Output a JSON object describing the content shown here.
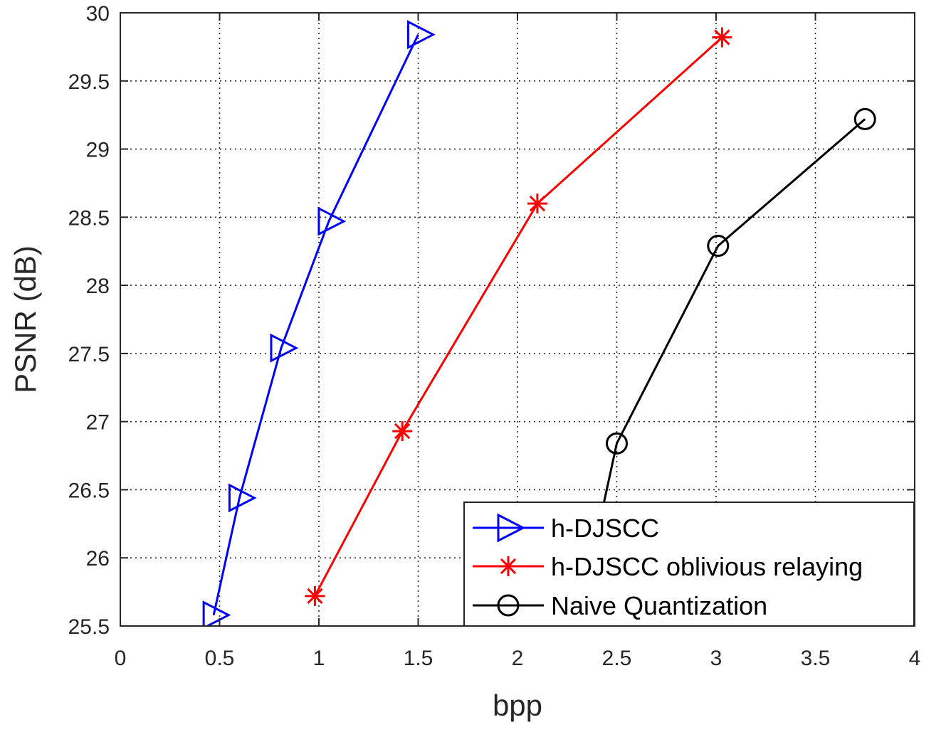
{
  "chart_data": {
    "type": "line",
    "xlabel": "bpp",
    "ylabel": "PSNR (dB)",
    "xlim": [
      0,
      4
    ],
    "ylim": [
      25.5,
      30
    ],
    "x_ticks": [
      "0",
      "0.5",
      "1",
      "1.5",
      "2",
      "2.5",
      "3",
      "3.5",
      "4"
    ],
    "y_ticks": [
      "25.5",
      "26",
      "26.5",
      "27",
      "27.5",
      "28",
      "28.5",
      "29",
      "29.5",
      "30"
    ],
    "grid": true,
    "legend_position": "bottom-right",
    "series": [
      {
        "name": "h-DJSCC",
        "color": "#0000ff",
        "marker": "triangle-right",
        "x": [
          0.47,
          0.6,
          0.81,
          1.05,
          1.5
        ],
        "y": [
          25.58,
          26.44,
          27.54,
          28.47,
          29.84
        ]
      },
      {
        "name": "h-DJSCC oblivious relaying",
        "color": "#ff0000",
        "marker": "asterisk",
        "x": [
          0.98,
          1.42,
          2.1,
          3.03
        ],
        "y": [
          25.72,
          26.93,
          28.6,
          29.82
        ]
      },
      {
        "name": "Naive Quantization",
        "color": "#000000",
        "marker": "circle",
        "x": [
          2.3,
          2.5,
          3.01,
          3.75
        ],
        "y": [
          25.5,
          26.84,
          28.29,
          29.22
        ]
      }
    ]
  }
}
